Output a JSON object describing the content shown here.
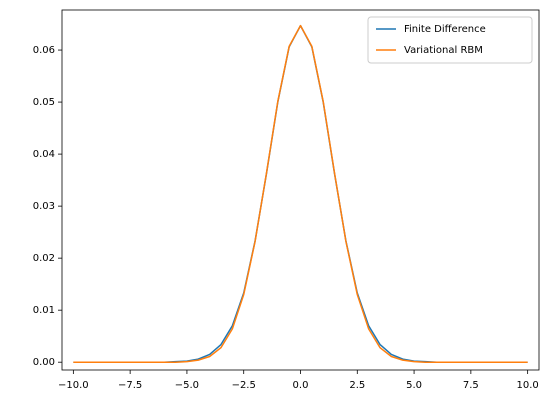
{
  "chart_data": {
    "type": "line",
    "x": [
      -10,
      -9.5,
      -9,
      -8.5,
      -8,
      -7.5,
      -7,
      -6.5,
      -6,
      -5.5,
      -5,
      -4.5,
      -4,
      -3.5,
      -3,
      -2.5,
      -2,
      -1.5,
      -1,
      -0.5,
      0,
      0.5,
      1,
      1.5,
      2,
      2.5,
      3,
      3.5,
      4,
      4.5,
      5,
      5.5,
      6,
      6.5,
      7,
      7.5,
      8,
      8.5,
      9,
      9.5,
      10
    ],
    "series": [
      {
        "name": "Finite Difference",
        "color": "#1f77b4",
        "values": [
          0,
          0,
          0,
          0,
          0,
          0,
          0,
          0,
          0,
          0.0001,
          0.0002,
          0.0006,
          0.0015,
          0.0034,
          0.007,
          0.0133,
          0.0233,
          0.0362,
          0.05,
          0.0606,
          0.0647,
          0.0606,
          0.05,
          0.0362,
          0.0233,
          0.0133,
          0.007,
          0.0034,
          0.0015,
          0.0006,
          0.0002,
          0.0001,
          0,
          0,
          0,
          0,
          0,
          0,
          0,
          0,
          0
        ]
      },
      {
        "name": "Variational RBM",
        "color": "#ff7f0e",
        "values": [
          0,
          0,
          0,
          0,
          0,
          0,
          0,
          0,
          0,
          0,
          0.0001,
          0.0004,
          0.0011,
          0.0028,
          0.0064,
          0.013,
          0.0232,
          0.0363,
          0.0501,
          0.0607,
          0.0647,
          0.0607,
          0.0501,
          0.0363,
          0.0232,
          0.013,
          0.0064,
          0.0028,
          0.0011,
          0.0004,
          0.0001,
          0,
          0,
          0,
          0,
          0,
          0,
          0,
          0,
          0,
          0
        ]
      }
    ],
    "xlim": [
      -10.5,
      10.5
    ],
    "xticks": [
      {
        "value": -10,
        "label": "−10.0"
      },
      {
        "value": -7.5,
        "label": "−7.5"
      },
      {
        "value": -5,
        "label": "−5.0"
      },
      {
        "value": -2.5,
        "label": "−2.5"
      },
      {
        "value": 0,
        "label": "0.0"
      },
      {
        "value": 2.5,
        "label": "2.5"
      },
      {
        "value": 5,
        "label": "5.0"
      },
      {
        "value": 7.5,
        "label": "7.5"
      },
      {
        "value": 10,
        "label": "10.0"
      }
    ],
    "ylim": [
      -0.0015,
      0.0677
    ],
    "yticks": [
      {
        "value": 0,
        "label": "0.00"
      },
      {
        "value": 0.01,
        "label": "0.01"
      },
      {
        "value": 0.02,
        "label": "0.02"
      },
      {
        "value": 0.03,
        "label": "0.03"
      },
      {
        "value": 0.04,
        "label": "0.04"
      },
      {
        "value": 0.05,
        "label": "0.05"
      },
      {
        "value": 0.06,
        "label": "0.06"
      }
    ],
    "legend": "upper right"
  }
}
